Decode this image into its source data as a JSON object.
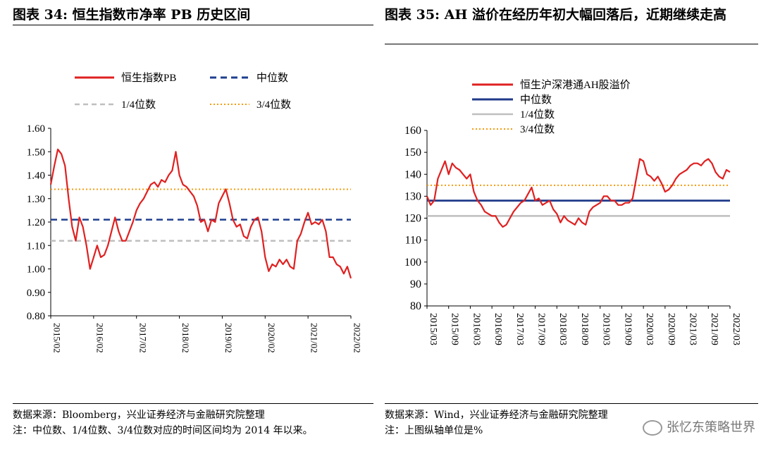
{
  "charts": [
    {
      "title": "图表 34:  恒生指数市净率 PB 历史区间",
      "source": "数据来源：Bloomberg，兴业证券经济与金融研究院整理",
      "note": "注：中位数、1/4位数、3/4位数对应的时间区间均为 2014 年以来。"
    },
    {
      "title": "图表 35:  AH 溢价在经历年初大幅回落后，近期继续走高",
      "source": "数据来源：Wind，兴业证券经济与金融研究院整理",
      "note": "注：上图纵轴单位是%"
    }
  ],
  "watermark": "张忆东策略世界",
  "colors": {
    "main": "#e02020",
    "median34": "#1f3f8f",
    "median35": "#1f3a8a",
    "q1": "#bfbfbf",
    "q3": "#f39c12"
  },
  "chart_data": [
    {
      "type": "line",
      "title": "图表 34:  恒生指数市净率 PB 历史区间",
      "ylim": [
        0.8,
        1.6
      ],
      "yticks": [
        "1.60",
        "1.50",
        "1.40",
        "1.30",
        "1.20",
        "1.10",
        "1.00",
        "0.90",
        "0.80"
      ],
      "x_ticks": [
        "2015/02",
        "2016/02",
        "2017/02",
        "2018/02",
        "2019/02",
        "2020/02",
        "2021/02",
        "2022/02"
      ],
      "legend": [
        "恒生指数PB",
        "中位数",
        "1/4位数",
        "3/4位数"
      ],
      "legend_position": "top",
      "grid": false,
      "series": [
        {
          "name": "恒生指数PB",
          "style": "solid",
          "x": [
            "2015-02",
            "2015-03",
            "2015-04",
            "2015-05",
            "2015-06",
            "2015-07",
            "2015-08",
            "2015-09",
            "2015-10",
            "2015-11",
            "2015-12",
            "2016-01",
            "2016-02",
            "2016-03",
            "2016-04",
            "2016-05",
            "2016-06",
            "2016-07",
            "2016-08",
            "2016-09",
            "2016-10",
            "2016-11",
            "2016-12",
            "2017-01",
            "2017-02",
            "2017-03",
            "2017-04",
            "2017-05",
            "2017-06",
            "2017-07",
            "2017-08",
            "2017-09",
            "2017-10",
            "2017-11",
            "2017-12",
            "2018-01",
            "2018-02",
            "2018-03",
            "2018-04",
            "2018-05",
            "2018-06",
            "2018-07",
            "2018-08",
            "2018-09",
            "2018-10",
            "2018-11",
            "2018-12",
            "2019-01",
            "2019-02",
            "2019-03",
            "2019-04",
            "2019-05",
            "2019-06",
            "2019-07",
            "2019-08",
            "2019-09",
            "2019-10",
            "2019-11",
            "2019-12",
            "2020-01",
            "2020-02",
            "2020-03",
            "2020-04",
            "2020-05",
            "2020-06",
            "2020-07",
            "2020-08",
            "2020-09",
            "2020-10",
            "2020-11",
            "2020-12",
            "2021-01",
            "2021-02",
            "2021-03",
            "2021-04",
            "2021-05",
            "2021-06",
            "2021-07",
            "2021-08",
            "2021-09",
            "2021-10",
            "2021-11",
            "2021-12",
            "2022-01",
            "2022-02"
          ],
          "values": [
            1.36,
            1.44,
            1.51,
            1.49,
            1.44,
            1.3,
            1.18,
            1.12,
            1.22,
            1.18,
            1.1,
            1.0,
            1.05,
            1.1,
            1.05,
            1.06,
            1.1,
            1.16,
            1.22,
            1.16,
            1.12,
            1.12,
            1.16,
            1.2,
            1.25,
            1.28,
            1.3,
            1.33,
            1.36,
            1.37,
            1.35,
            1.38,
            1.37,
            1.4,
            1.42,
            1.5,
            1.4,
            1.36,
            1.35,
            1.33,
            1.31,
            1.27,
            1.2,
            1.21,
            1.16,
            1.21,
            1.2,
            1.28,
            1.31,
            1.34,
            1.28,
            1.21,
            1.18,
            1.19,
            1.14,
            1.13,
            1.18,
            1.21,
            1.22,
            1.16,
            1.05,
            0.99,
            1.02,
            1.01,
            1.04,
            1.02,
            1.04,
            1.01,
            1.0,
            1.12,
            1.15,
            1.2,
            1.24,
            1.19,
            1.2,
            1.19,
            1.21,
            1.16,
            1.05,
            1.05,
            1.02,
            1.01,
            0.98,
            1.01,
            0.96
          ]
        },
        {
          "name": "中位数",
          "style": "dashed",
          "value": 1.21
        },
        {
          "name": "1/4位数",
          "style": "dashed",
          "value": 1.12
        },
        {
          "name": "3/4位数",
          "style": "dotted",
          "value": 1.34
        }
      ]
    },
    {
      "type": "line",
      "title": "图表 35:  AH 溢价在经历年初大幅回落后，近期继续走高",
      "ylim": [
        80,
        160
      ],
      "yticks": [
        "160",
        "150",
        "140",
        "130",
        "120",
        "110",
        "100",
        "90",
        "80"
      ],
      "x_ticks": [
        "2015/03",
        "2015/09",
        "2016/03",
        "2016/09",
        "2017/03",
        "2017/09",
        "2018/03",
        "2018/09",
        "2019/03",
        "2019/09",
        "2020/03",
        "2020/09",
        "2021/03",
        "2021/09",
        "2022/03"
      ],
      "legend": [
        "恒生沪深港通AH股溢价",
        "中位数",
        "1/4位数",
        "3/4位数"
      ],
      "legend_position": "top-left",
      "grid": false,
      "series": [
        {
          "name": "恒生沪深港通AH股溢价",
          "style": "solid",
          "x": [
            "2015-03",
            "2015-04",
            "2015-05",
            "2015-06",
            "2015-07",
            "2015-08",
            "2015-09",
            "2015-10",
            "2015-11",
            "2015-12",
            "2016-01",
            "2016-02",
            "2016-03",
            "2016-04",
            "2016-05",
            "2016-06",
            "2016-07",
            "2016-08",
            "2016-09",
            "2016-10",
            "2016-11",
            "2016-12",
            "2017-01",
            "2017-02",
            "2017-03",
            "2017-04",
            "2017-05",
            "2017-06",
            "2017-07",
            "2017-08",
            "2017-09",
            "2017-10",
            "2017-11",
            "2017-12",
            "2018-01",
            "2018-02",
            "2018-03",
            "2018-04",
            "2018-05",
            "2018-06",
            "2018-07",
            "2018-08",
            "2018-09",
            "2018-10",
            "2018-11",
            "2018-12",
            "2019-01",
            "2019-02",
            "2019-03",
            "2019-04",
            "2019-05",
            "2019-06",
            "2019-07",
            "2019-08",
            "2019-09",
            "2019-10",
            "2019-11",
            "2019-12",
            "2020-01",
            "2020-02",
            "2020-03",
            "2020-04",
            "2020-05",
            "2020-06",
            "2020-07",
            "2020-08",
            "2020-09",
            "2020-10",
            "2020-11",
            "2020-12",
            "2021-01",
            "2021-02",
            "2021-03",
            "2021-04",
            "2021-05",
            "2021-06",
            "2021-07",
            "2021-08",
            "2021-09",
            "2021-10",
            "2021-11",
            "2021-12",
            "2022-01",
            "2022-02",
            "2022-03"
          ],
          "values": [
            130,
            126,
            128,
            138,
            142,
            146,
            140,
            145,
            143,
            142,
            140,
            138,
            140,
            132,
            128,
            126,
            123,
            122,
            121,
            121,
            118,
            116,
            117,
            120,
            123,
            125,
            127,
            128,
            131,
            134,
            128,
            129,
            126,
            127,
            128,
            124,
            122,
            118,
            121,
            119,
            118,
            117,
            120,
            118,
            117,
            123,
            125,
            126,
            127,
            130,
            130,
            128,
            128,
            126,
            126,
            127,
            127,
            129,
            138,
            147,
            146,
            140,
            139,
            137,
            139,
            136,
            132,
            133,
            135,
            138,
            140,
            141,
            142,
            144,
            145,
            145,
            144,
            146,
            147,
            145,
            141,
            139,
            138,
            142,
            141
          ]
        },
        {
          "name": "中位数",
          "style": "solid",
          "value": 128
        },
        {
          "name": "1/4位数",
          "style": "solid",
          "value": 121
        },
        {
          "name": "3/4位数",
          "style": "dotted",
          "value": 135
        }
      ]
    }
  ]
}
